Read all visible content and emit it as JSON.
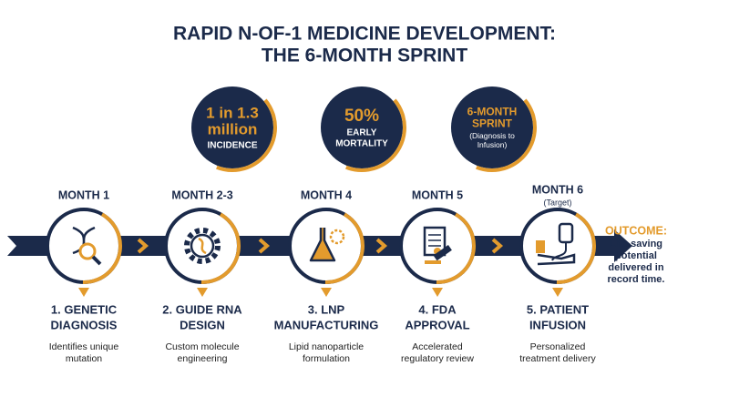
{
  "header": {
    "title": [
      "RAPID N-OF-1 MEDICINE DEVELOPMENT:",
      "THE 6-MONTH SPRINT"
    ]
  },
  "stats": [
    {
      "value": [
        "1 in 1.3",
        "million"
      ],
      "label": [
        "INCIDENCE"
      ]
    },
    {
      "value": [
        "50%"
      ],
      "label": [
        "EARLY",
        "MORTALITY"
      ]
    },
    {
      "value": [
        "6-MONTH",
        "SPRINT"
      ],
      "label": [
        "(Diagnosis to",
        "Infusion)"
      ]
    }
  ],
  "steps": [
    {
      "month": "MONTH 1",
      "title": [
        "1. GENETIC",
        "DIAGNOSIS"
      ],
      "description": [
        "Identifies unique",
        "mutation"
      ]
    },
    {
      "month": "MONTH 2-3",
      "title": [
        "2. GUIDE RNA",
        "DESIGN"
      ],
      "description": [
        "Custom molecule",
        "engineering"
      ]
    },
    {
      "month": "MONTH 4",
      "title": [
        "3. LNP",
        "MANUFACTURING"
      ],
      "description": [
        "Lipid nanoparticle",
        "formulation"
      ]
    },
    {
      "month": "MONTH 5",
      "title": [
        "4. FDA",
        "APPROVAL"
      ],
      "description": [
        "Accelerated",
        "regulatory review"
      ]
    },
    {
      "month": "MONTH 6",
      "note": "(Target)",
      "title": [
        "5. PATIENT",
        "INFUSION"
      ],
      "description": [
        "Personalized",
        "treatment delivery"
      ]
    }
  ],
  "outcome": {
    "label": "OUTCOME:",
    "text": [
      "Life-saving",
      "potential",
      "delivered in",
      "record time."
    ]
  }
}
